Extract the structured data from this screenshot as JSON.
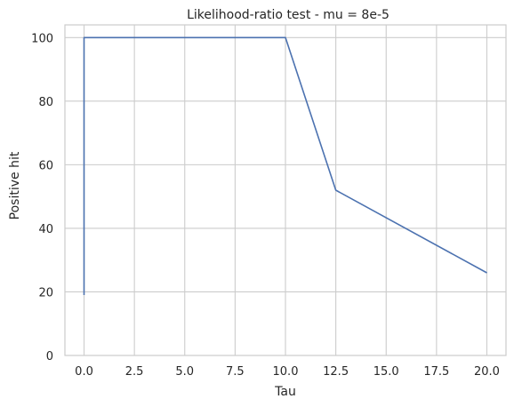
{
  "chart_data": {
    "type": "line",
    "title": "Likelihood-ratio test - mu = 8e-5",
    "xlabel": "Tau",
    "ylabel": "Positive hit",
    "xlim": [
      -0.95,
      20.95
    ],
    "ylim": [
      0,
      104
    ],
    "x_ticks": [
      0.0,
      2.5,
      5.0,
      7.5,
      10.0,
      12.5,
      15.0,
      17.5,
      20.0
    ],
    "x_tick_labels": [
      "0.0",
      "2.5",
      "5.0",
      "7.5",
      "10.0",
      "12.5",
      "15.0",
      "17.5",
      "20.0"
    ],
    "y_ticks": [
      0,
      20,
      40,
      60,
      80,
      100
    ],
    "y_tick_labels": [
      "0",
      "20",
      "40",
      "60",
      "80",
      "100"
    ],
    "grid": true,
    "series": [
      {
        "color": "#4c72b0",
        "x": [
          0.0,
          0.0,
          0.0,
          0.0,
          0.0,
          0.0,
          0.0,
          0.0,
          0.0,
          0.0,
          0.05,
          10.0,
          12.5,
          20.0
        ],
        "y": [
          19,
          29,
          26,
          36,
          33,
          43,
          49,
          44,
          90,
          100,
          100,
          100,
          52,
          26
        ]
      }
    ]
  }
}
